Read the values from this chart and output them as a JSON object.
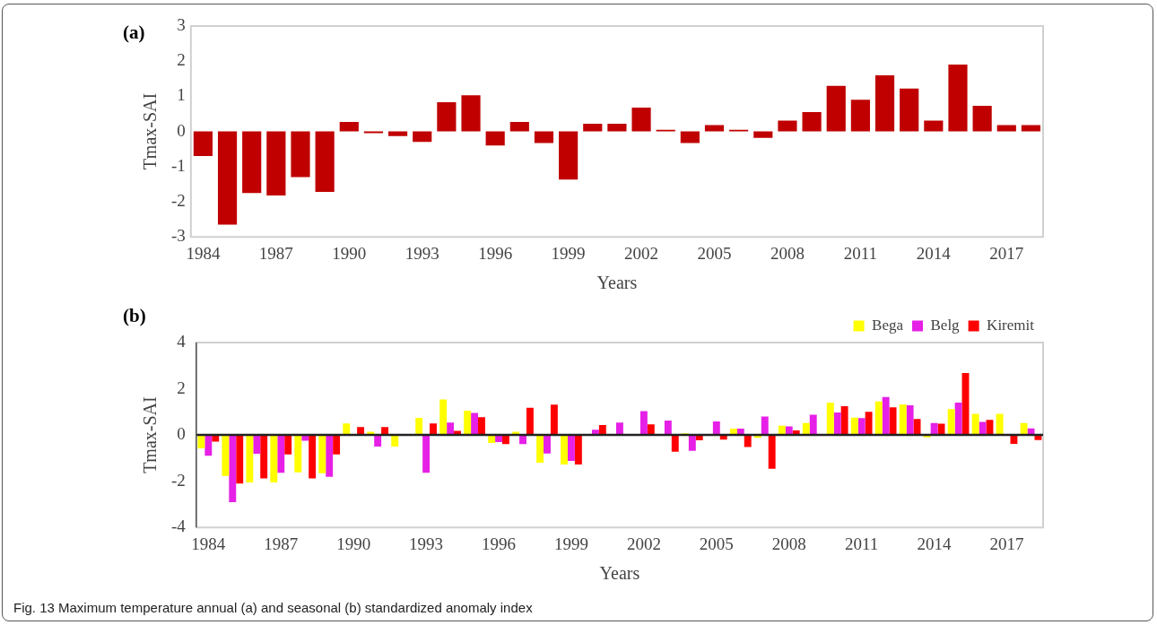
{
  "chart_data": [
    {
      "type": "bar",
      "title": "(a)",
      "xlabel": "Years",
      "ylabel": "Tmax-SAI",
      "categories": [
        "1984",
        null,
        null,
        "1987",
        null,
        null,
        "1990",
        null,
        null,
        "1993",
        null,
        null,
        "1996",
        null,
        null,
        "1999",
        null,
        null,
        "2002",
        null,
        null,
        "2005",
        null,
        null,
        "2008",
        null,
        null,
        "2011",
        null,
        null,
        "2014",
        null,
        null,
        "2017",
        null
      ],
      "series": [
        {
          "color": "#c00000",
          "values": [
            -0.7,
            -2.65,
            -1.75,
            -1.82,
            -1.3,
            -1.72,
            0.27,
            -0.05,
            -0.13,
            -0.3,
            0.83,
            1.03,
            -0.4,
            0.27,
            -0.33,
            -1.37,
            0.22,
            0.22,
            0.68,
            0.05,
            -0.33,
            0.18,
            0.05,
            -0.18,
            0.31,
            0.55,
            1.3,
            0.9,
            1.6,
            1.22,
            0.31,
            1.9,
            0.73,
            0.18,
            0.18
          ]
        }
      ],
      "ylim": [
        -3,
        3
      ],
      "yticks": [
        -3,
        -2,
        -1,
        0,
        1,
        2,
        3
      ]
    },
    {
      "type": "bar",
      "title": "(b)",
      "xlabel": "Years",
      "ylabel": "Tmax-SAI",
      "legend": "top right",
      "categories": [
        "1984",
        null,
        null,
        "1987",
        null,
        null,
        "1990",
        null,
        null,
        "1993",
        null,
        null,
        "1996",
        null,
        null,
        "1999",
        null,
        null,
        "2002",
        null,
        null,
        "2005",
        null,
        null,
        "2008",
        null,
        null,
        "2011",
        null,
        null,
        "2014",
        null,
        null,
        "2017",
        null
      ],
      "series": [
        {
          "name": "Bega",
          "color": "#ffff00",
          "values": [
            -0.58,
            -1.77,
            -2.05,
            -2.05,
            -1.62,
            -1.65,
            0.5,
            0.14,
            -0.5,
            0.74,
            1.54,
            1.05,
            -0.35,
            0.14,
            -1.2,
            -1.28,
            0,
            0,
            null,
            0,
            0.07,
            0,
            0.28,
            -0.12,
            0.4,
            0.52,
            1.4,
            0.75,
            1.45,
            1.32,
            -0.1,
            1.12,
            0.92,
            0.92,
            0.52
          ]
        },
        {
          "name": "Belg",
          "color": "#e620e6",
          "values": [
            -0.9,
            -2.91,
            -0.81,
            -1.64,
            -0.25,
            -1.81,
            0,
            -0.5,
            0,
            -1.64,
            0.54,
            0.95,
            -0.31,
            -0.39,
            -0.8,
            -1.12,
            0.23,
            0.54,
            1.03,
            0.62,
            -0.68,
            0.59,
            0.28,
            0.8,
            0.37,
            0.88,
            0.97,
            0.73,
            1.64,
            1.28,
            0.52,
            1.4,
            0.57,
            0,
            0.29
          ]
        },
        {
          "name": "Kiremit",
          "color": "#ff0000",
          "values": [
            -0.29,
            -2.1,
            -1.88,
            -0.84,
            -1.88,
            -0.84,
            0.34,
            0.34,
            0,
            0.5,
            0.18,
            0.77,
            -0.39,
            1.18,
            1.31,
            -1.28,
            0.43,
            0,
            0.46,
            -0.72,
            -0.23,
            -0.2,
            -0.52,
            -1.46,
            0.2,
            0,
            1.25,
            1.0,
            1.2,
            0.69,
            0.49,
            2.68,
            0.65,
            -0.38,
            -0.22
          ]
        }
      ],
      "ylim": [
        -4,
        4
      ],
      "yticks": [
        -4,
        -2,
        0,
        2,
        4
      ],
      "annotations": [
        "Fig. 13  Maximum temperature annual (a) and seasonal (b) standardized anomaly index"
      ]
    }
  ]
}
